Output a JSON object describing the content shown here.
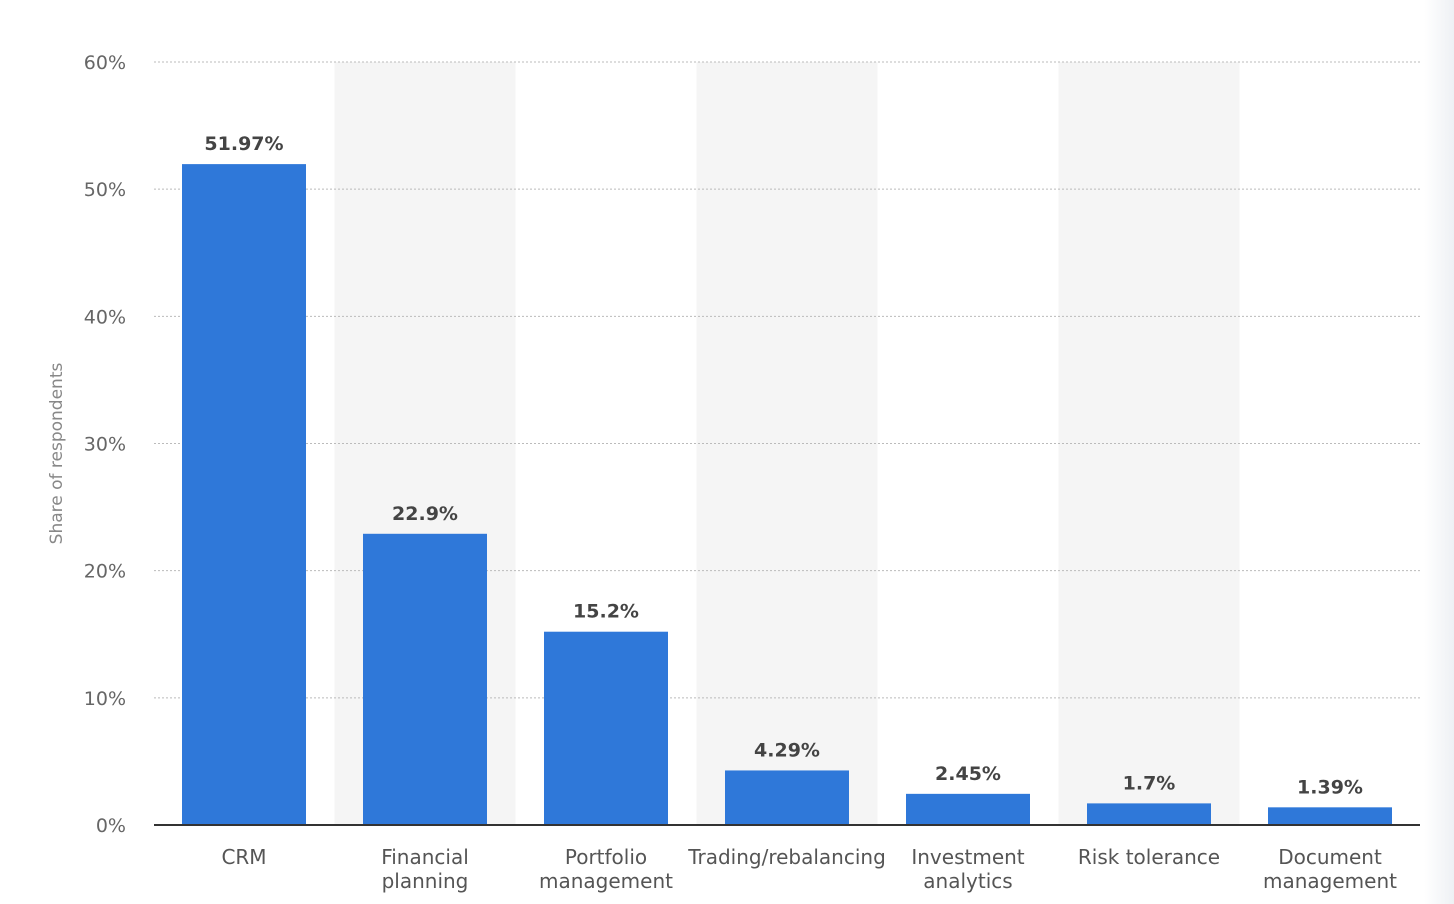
{
  "chart_data": {
    "type": "bar",
    "categories": [
      [
        "CRM"
      ],
      [
        "Financial",
        "planning"
      ],
      [
        "Portfolio",
        "management"
      ],
      [
        "Trading/rebalancing"
      ],
      [
        "Investment",
        "analytics"
      ],
      [
        "Risk tolerance"
      ],
      [
        "Document",
        "management"
      ]
    ],
    "values": [
      51.97,
      22.9,
      15.2,
      4.29,
      2.45,
      1.7,
      1.39
    ],
    "value_labels": [
      "51.97%",
      "22.9%",
      "15.2%",
      "4.29%",
      "2.45%",
      "1.7%",
      "1.39%"
    ],
    "ylabel": "Share of respondents",
    "ylim": [
      0,
      60
    ],
    "yticks": [
      0,
      10,
      20,
      30,
      40,
      50,
      60
    ],
    "ytick_labels": [
      "0%",
      "10%",
      "20%",
      "30%",
      "40%",
      "50%",
      "60%"
    ],
    "grid": true,
    "alternating_column_shading": true,
    "colors": {
      "bar": "#2f78d9",
      "band": "#f5f5f5",
      "grid": "#bbbbbb",
      "axis": "#333333"
    }
  }
}
